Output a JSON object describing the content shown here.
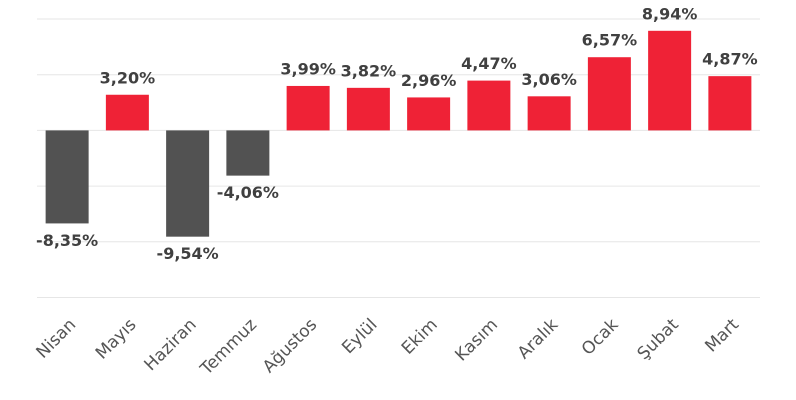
{
  "chart_data": {
    "type": "bar",
    "categories": [
      "Nisan",
      "Mayıs",
      "Haziran",
      "Temmuz",
      "Ağustos",
      "Eylül",
      "Ekim",
      "Kasım",
      "Aralık",
      "Ocak",
      "Şubat",
      "Mart"
    ],
    "values": [
      -8.35,
      3.2,
      -9.54,
      -4.06,
      3.99,
      3.82,
      2.96,
      4.47,
      3.06,
      6.57,
      8.94,
      4.87
    ],
    "value_labels": [
      "-8,35%",
      "3,20%",
      "-9,54%",
      "-4,06%",
      "3,99%",
      "3,82%",
      "2,96%",
      "4,47%",
      "3,06%",
      "6,57%",
      "8,94%",
      "4,87%"
    ],
    "color": "#ef2236",
    "negative_color": "#525252",
    "ylim": [
      -15,
      10
    ],
    "yticks": [
      -15,
      -10,
      -5,
      0,
      5,
      10
    ],
    "grid": true
  }
}
